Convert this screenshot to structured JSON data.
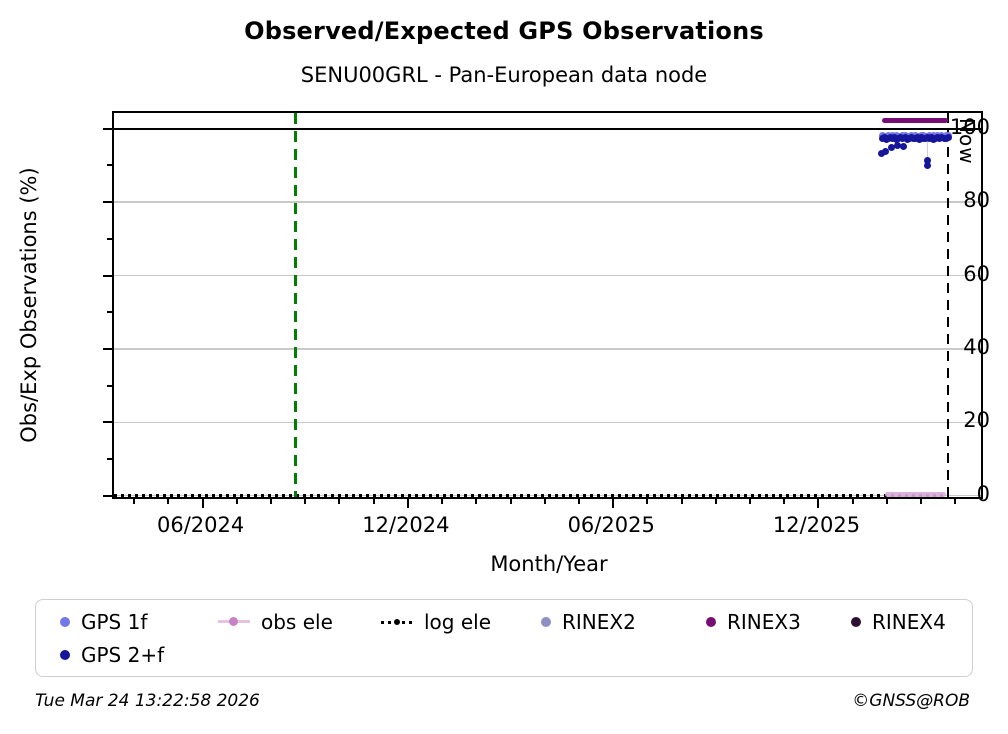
{
  "header": {
    "title": "Observed/Expected GPS Observations",
    "subtitle": "SENU00GRL - Pan-European data node"
  },
  "footer": {
    "timestamp": "Tue Mar 24 13:22:58 2026",
    "copyright": "©GNSS@ROB"
  },
  "chart_data": {
    "type": "scatter",
    "title": "Observed/Expected GPS Observations",
    "subtitle": "SENU00GRL - Pan-European data node",
    "xlabel": "Month/Year",
    "ylabel": "Obs/Exp Observations (%)",
    "x_unit": "months since 2024-01 (0 = Jan 2024)",
    "xlim": [
      2.41,
      27.75
    ],
    "ylim": [
      -0.3,
      104.3
    ],
    "yticks": [
      0,
      20,
      40,
      60,
      80,
      100
    ],
    "yticks_minor": [
      10,
      30,
      50,
      70,
      90
    ],
    "xticks": [
      {
        "m": 5,
        "label": "06/2024"
      },
      {
        "m": 11,
        "label": "12/2024"
      },
      {
        "m": 17,
        "label": "06/2025"
      },
      {
        "m": 23,
        "label": "12/2025"
      }
    ],
    "xticks_minor_start": 3,
    "xticks_minor_end": 27,
    "grid": true,
    "grid_color": "#c9c9c9",
    "reference_line_100": {
      "v": 100,
      "color": "#000000"
    },
    "annotations": {
      "green_line": {
        "m": 7.71,
        "color": "#008000",
        "style": "dashed"
      },
      "now_line": {
        "m": 26.79,
        "label": "Now",
        "color": "#000000",
        "style": "dashed"
      }
    },
    "legend_position": "below",
    "series": [
      {
        "name": "GPS 1f",
        "color": "#7477e8",
        "marker": "dot",
        "points": [
          [
            24.87,
            98.2
          ],
          [
            24.93,
            97.8
          ],
          [
            24.99,
            98.0
          ],
          [
            25.05,
            98.3
          ],
          [
            25.11,
            97.9
          ],
          [
            25.17,
            98.1
          ],
          [
            25.23,
            97.8
          ],
          [
            25.29,
            98.2
          ],
          [
            25.35,
            98.0
          ],
          [
            25.41,
            97.9
          ],
          [
            25.47,
            98.1
          ],
          [
            25.53,
            98.3
          ],
          [
            25.59,
            97.8
          ],
          [
            25.65,
            98.0
          ],
          [
            25.71,
            98.2
          ],
          [
            25.77,
            97.9
          ],
          [
            25.83,
            98.1
          ],
          [
            25.89,
            98.0
          ],
          [
            25.95,
            97.8
          ],
          [
            26.01,
            98.2
          ],
          [
            26.07,
            98.1
          ],
          [
            26.13,
            97.9
          ],
          [
            26.19,
            98.0
          ],
          [
            26.25,
            98.3
          ],
          [
            26.31,
            97.8
          ],
          [
            26.37,
            98.1
          ],
          [
            26.43,
            98.0
          ],
          [
            26.49,
            98.2
          ],
          [
            26.55,
            97.9
          ],
          [
            26.61,
            98.1
          ],
          [
            26.67,
            98.0
          ],
          [
            26.73,
            98.2
          ],
          [
            26.79,
            98.1
          ]
        ]
      },
      {
        "name": "GPS 2+f",
        "color": "#16169a",
        "marker": "dot",
        "points": [
          [
            24.87,
            97.3
          ],
          [
            24.93,
            97.5
          ],
          [
            24.99,
            97.2
          ],
          [
            25.05,
            97.4
          ],
          [
            25.11,
            97.6
          ],
          [
            25.17,
            97.3
          ],
          [
            25.23,
            97.5
          ],
          [
            25.29,
            97.2
          ],
          [
            25.35,
            97.4
          ],
          [
            25.41,
            97.6
          ],
          [
            25.47,
            97.3
          ],
          [
            25.53,
            97.5
          ],
          [
            25.59,
            97.2
          ],
          [
            25.65,
            97.4
          ],
          [
            25.71,
            97.6
          ],
          [
            25.77,
            97.3
          ],
          [
            25.83,
            97.4
          ],
          [
            25.89,
            97.6
          ],
          [
            25.95,
            97.2
          ],
          [
            26.01,
            97.5
          ],
          [
            26.07,
            97.3
          ],
          [
            26.13,
            97.4
          ],
          [
            26.19,
            97.6
          ],
          [
            26.25,
            97.3
          ],
          [
            26.31,
            97.5
          ],
          [
            26.37,
            97.2
          ],
          [
            26.43,
            97.4
          ],
          [
            26.49,
            97.5
          ],
          [
            26.55,
            97.3
          ],
          [
            26.61,
            97.6
          ],
          [
            26.67,
            97.4
          ],
          [
            26.73,
            97.3
          ],
          [
            26.79,
            97.5
          ],
          [
            24.84,
            93.2
          ],
          [
            24.95,
            93.8
          ],
          [
            25.13,
            94.9
          ],
          [
            25.3,
            95.5
          ],
          [
            25.48,
            95.1
          ],
          [
            26.18,
            91.4
          ],
          [
            26.18,
            90.0
          ]
        ]
      },
      {
        "name": "obs ele",
        "color": "#d9a8d9",
        "marker": "thick-line",
        "segment": {
          "m0": 24.93,
          "m1": 26.73,
          "v": 0.4
        }
      },
      {
        "name": "log ele",
        "color": "#000000",
        "marker": "dotted-line",
        "segment": {
          "m0": 2.41,
          "m1": 26.79,
          "v": 0.15
        }
      },
      {
        "name": "RINEX2",
        "color": "#8f8fc4",
        "marker": "dot",
        "points": []
      },
      {
        "name": "RINEX3",
        "color": "#750d75",
        "marker": "thick-line",
        "segment": {
          "m0": 24.87,
          "m1": 26.79,
          "v": 102.35
        }
      },
      {
        "name": "RINEX4",
        "color": "#2d0f36",
        "marker": "dot",
        "points": []
      }
    ],
    "connector": {
      "m": 26.18,
      "v0": 97.3,
      "v1": 90.4,
      "color": "#caccf1"
    }
  }
}
